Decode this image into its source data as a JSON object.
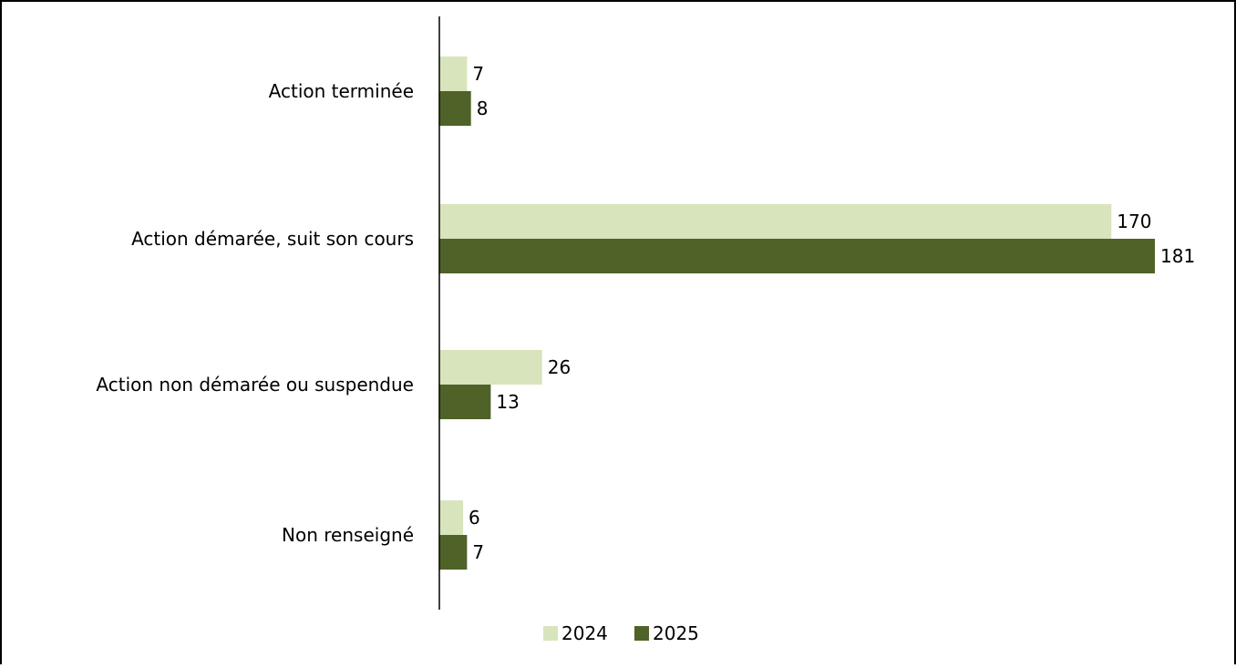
{
  "chart_data": {
    "type": "bar",
    "orientation": "horizontal",
    "categories": [
      "Action terminée",
      "Action démarée, suit son cours",
      "Action non démarée ou suspendue",
      "Non renseigné"
    ],
    "series": [
      {
        "name": "2024",
        "values": [
          7,
          170,
          26,
          6
        ],
        "color": "#d8e4bc"
      },
      {
        "name": "2025",
        "values": [
          8,
          181,
          13,
          7
        ],
        "color": "#4f6228"
      }
    ],
    "xlim": [
      0,
      181
    ],
    "grid": false,
    "legend_position": "bottom-center",
    "data_labels": true
  }
}
